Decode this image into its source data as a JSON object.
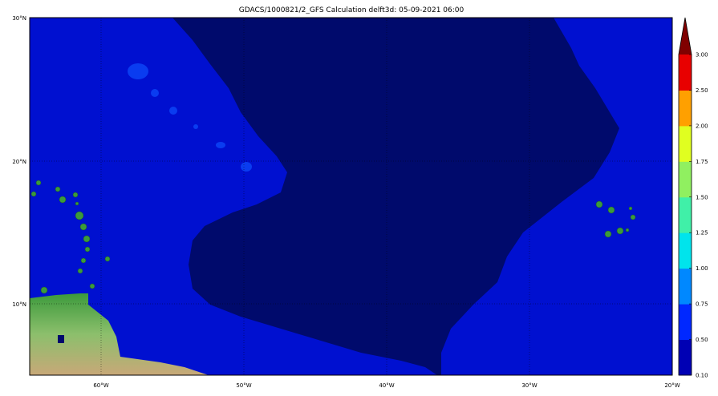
{
  "title": "GDACS/1000821/2_GFS Calculation delft3d: 05-09-2021 06:00",
  "map": {
    "lat_labels": [
      "30°N",
      "20°N",
      "10°N"
    ],
    "lon_labels": [
      "60°W",
      "50°W",
      "40°W",
      "30°W",
      "20°W"
    ],
    "extent": {
      "lon": [
        -65,
        -20
      ],
      "lat": [
        5,
        30
      ]
    },
    "ocean_colors": {
      "background": "#0010d0",
      "dark_region": "#000a6c"
    },
    "land_color": "#3c9a3c"
  },
  "colorbar": {
    "ticks": [
      "3.00",
      "2.50",
      "2.00",
      "1.75",
      "1.50",
      "1.25",
      "1.00",
      "0.75",
      "0.50",
      "0.10"
    ],
    "levels": [
      0.1,
      0.5,
      0.75,
      1.0,
      1.25,
      1.5,
      1.75,
      2.0,
      2.5,
      3.0
    ],
    "colors": [
      "#0000b4",
      "#0028ff",
      "#0088ff",
      "#00e4ec",
      "#40f0a8",
      "#90f060",
      "#e0ff20",
      "#ffa000",
      "#e80000"
    ],
    "extend_color": "#800000",
    "extend": "max"
  }
}
